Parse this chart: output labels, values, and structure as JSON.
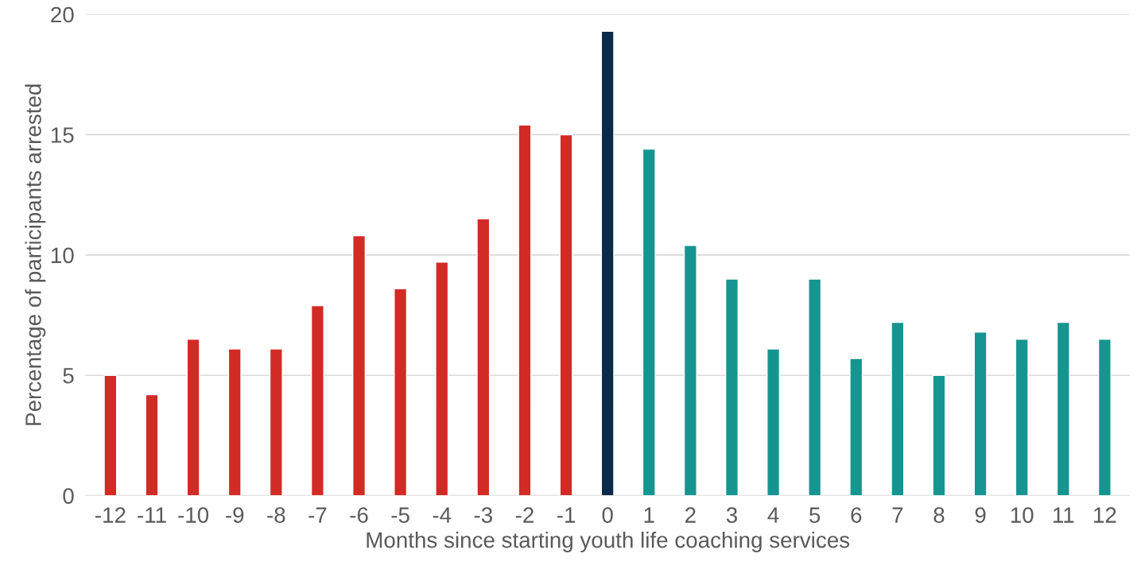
{
  "chart_data": {
    "type": "bar",
    "xlabel": "Months since starting youth life coaching services",
    "ylabel": "Percentage of participants arrested",
    "categories": [
      "-12",
      "-11",
      "-10",
      "-9",
      "-8",
      "-7",
      "-6",
      "-5",
      "-4",
      "-3",
      "-2",
      "-1",
      "0",
      "1",
      "2",
      "3",
      "4",
      "5",
      "6",
      "7",
      "8",
      "9",
      "10",
      "11",
      "12"
    ],
    "values": [
      5.0,
      4.2,
      6.5,
      6.1,
      6.1,
      7.9,
      10.8,
      8.6,
      9.7,
      11.5,
      15.4,
      15.0,
      19.3,
      14.4,
      10.4,
      9.0,
      6.1,
      9.0,
      5.7,
      7.2,
      5.0,
      6.8,
      6.5,
      7.2,
      6.5
    ],
    "colors": [
      "#d22b26",
      "#d22b26",
      "#d22b26",
      "#d22b26",
      "#d22b26",
      "#d22b26",
      "#d22b26",
      "#d22b26",
      "#d22b26",
      "#d22b26",
      "#d22b26",
      "#d22b26",
      "#0b2a4a",
      "#169590",
      "#169590",
      "#169590",
      "#169590",
      "#169590",
      "#169590",
      "#169590",
      "#169590",
      "#169590",
      "#169590",
      "#169590",
      "#169590"
    ],
    "ylim": [
      0,
      20
    ],
    "yticks": [
      0,
      5,
      10,
      15,
      20
    ],
    "grid": "y"
  }
}
